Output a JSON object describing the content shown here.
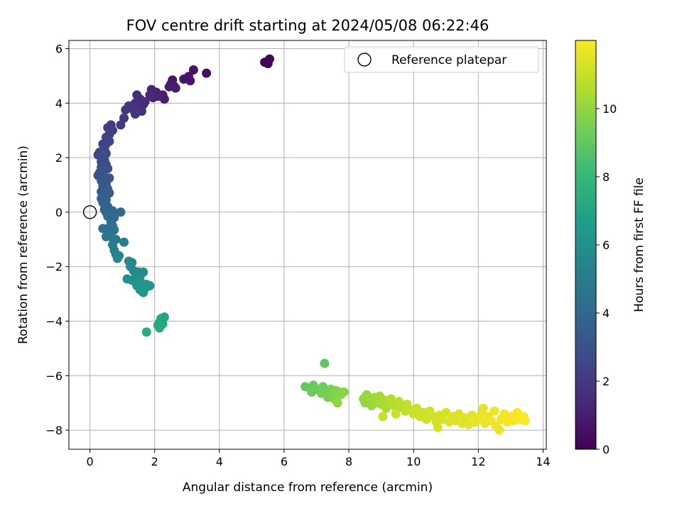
{
  "chart_data": {
    "type": "scatter",
    "title": "FOV centre drift starting at 2024/05/08 06:22:46",
    "xlabel": "Angular distance from reference (arcmin)",
    "ylabel": "Rotation from reference (arcmin)",
    "xlim": [
      -0.65,
      14.1
    ],
    "ylim": [
      -8.7,
      6.3
    ],
    "xticks": [
      0,
      2,
      4,
      6,
      8,
      10,
      12,
      14
    ],
    "yticks": [
      -8,
      -6,
      -4,
      -2,
      0,
      2,
      4,
      6
    ],
    "grid": true,
    "legend": {
      "placement": "top-right",
      "entries": [
        "Reference platepar"
      ]
    },
    "reference_point": {
      "name": "Reference platepar",
      "x": 0,
      "y": 0
    },
    "colorbar": {
      "label": "Hours from first FF file",
      "range": [
        0,
        12
      ],
      "ticks": [
        0,
        2,
        4,
        6,
        8,
        10
      ],
      "colormap": "viridis",
      "colors": [
        "#440154",
        "#482878",
        "#3e4a89",
        "#31688e",
        "#26828e",
        "#1f9e89",
        "#35b779",
        "#6ece58",
        "#b5de2b",
        "#fde725"
      ]
    },
    "series": [
      {
        "points": [
          [
            5.4,
            5.5,
            0.0
          ],
          [
            5.5,
            5.45,
            0.1
          ],
          [
            5.55,
            5.62,
            0.2
          ],
          [
            3.6,
            5.1,
            0.5
          ],
          [
            3.2,
            5.22,
            0.6
          ],
          [
            3.05,
            4.98,
            0.65
          ],
          [
            2.9,
            4.88,
            0.7
          ],
          [
            3.1,
            4.82,
            0.75
          ],
          [
            2.55,
            4.85,
            0.8
          ],
          [
            2.6,
            4.62,
            0.85
          ],
          [
            2.5,
            4.7,
            0.9
          ],
          [
            2.65,
            4.55,
            0.95
          ],
          [
            2.45,
            4.6,
            1.0
          ],
          [
            2.25,
            4.3,
            1.05
          ],
          [
            2.3,
            4.15,
            1.1
          ],
          [
            2.1,
            4.25,
            1.15
          ],
          [
            2.05,
            4.4,
            1.2
          ],
          [
            1.9,
            4.5,
            1.25
          ],
          [
            1.95,
            4.2,
            1.3
          ],
          [
            1.85,
            4.3,
            1.35
          ],
          [
            1.7,
            4.05,
            1.4
          ],
          [
            1.65,
            3.95,
            1.45
          ],
          [
            1.55,
            4.15,
            1.5
          ],
          [
            1.45,
            4.3,
            1.55
          ],
          [
            1.4,
            4.0,
            1.6
          ],
          [
            1.5,
            3.8,
            1.65
          ],
          [
            1.6,
            3.7,
            1.7
          ],
          [
            1.4,
            3.6,
            1.75
          ],
          [
            1.35,
            3.75,
            1.8
          ],
          [
            1.2,
            3.9,
            1.85
          ],
          [
            1.1,
            3.75,
            1.9
          ],
          [
            1.05,
            3.45,
            1.95
          ],
          [
            0.95,
            3.2,
            2.0
          ],
          [
            0.65,
            3.2,
            2.1
          ],
          [
            0.55,
            3.1,
            2.15
          ],
          [
            0.7,
            3.0,
            2.2
          ],
          [
            0.6,
            2.85,
            2.25
          ],
          [
            0.5,
            2.75,
            2.3
          ],
          [
            0.6,
            2.6,
            2.35
          ],
          [
            0.5,
            2.5,
            2.4
          ],
          [
            0.4,
            2.5,
            2.45
          ],
          [
            0.45,
            2.3,
            2.5
          ],
          [
            0.3,
            2.2,
            2.55
          ],
          [
            0.25,
            2.1,
            2.6
          ],
          [
            0.4,
            2.05,
            2.65
          ],
          [
            0.5,
            2.15,
            2.7
          ],
          [
            0.45,
            1.9,
            2.75
          ],
          [
            0.35,
            1.85,
            2.8
          ],
          [
            0.5,
            1.75,
            2.85
          ],
          [
            0.35,
            1.65,
            2.9
          ],
          [
            0.55,
            1.6,
            2.95
          ],
          [
            0.4,
            1.5,
            3.0
          ],
          [
            0.3,
            1.45,
            3.05
          ],
          [
            0.25,
            1.35,
            3.1
          ],
          [
            0.45,
            1.3,
            3.15
          ],
          [
            0.6,
            1.25,
            3.2
          ],
          [
            0.35,
            1.15,
            3.25
          ],
          [
            0.5,
            1.05,
            3.3
          ],
          [
            0.4,
            0.95,
            3.35
          ],
          [
            0.55,
            0.85,
            3.4
          ],
          [
            0.35,
            0.75,
            3.45
          ],
          [
            0.6,
            0.7,
            3.5
          ],
          [
            0.45,
            0.6,
            3.55
          ],
          [
            0.35,
            0.5,
            3.6
          ],
          [
            0.5,
            0.45,
            3.65
          ],
          [
            0.4,
            0.35,
            3.7
          ],
          [
            0.55,
            0.2,
            3.75
          ],
          [
            0.45,
            0.1,
            3.8
          ],
          [
            0.5,
            0.0,
            3.85
          ],
          [
            0.6,
            -0.05,
            3.9
          ],
          [
            0.7,
            0.05,
            3.95
          ],
          [
            0.95,
            0.0,
            4.0
          ],
          [
            0.55,
            -0.15,
            4.1
          ],
          [
            0.75,
            -0.2,
            4.15
          ],
          [
            0.65,
            -0.35,
            4.2
          ],
          [
            0.7,
            -0.5,
            4.3
          ],
          [
            0.55,
            -0.6,
            4.4
          ],
          [
            0.4,
            -0.6,
            4.45
          ],
          [
            0.75,
            -0.65,
            4.5
          ],
          [
            0.6,
            -0.8,
            4.6
          ],
          [
            0.5,
            -0.9,
            4.7
          ],
          [
            0.7,
            -0.95,
            4.8
          ],
          [
            0.8,
            -1.0,
            4.9
          ],
          [
            1.05,
            -1.1,
            5.0
          ],
          [
            0.7,
            -1.2,
            5.1
          ],
          [
            0.75,
            -1.4,
            5.2
          ],
          [
            0.8,
            -1.55,
            5.3
          ],
          [
            0.9,
            -1.6,
            5.4
          ],
          [
            0.85,
            -1.7,
            5.5
          ],
          [
            1.2,
            -1.8,
            5.6
          ],
          [
            1.3,
            -1.85,
            5.65
          ],
          [
            1.25,
            -2.0,
            5.7
          ],
          [
            1.35,
            -2.15,
            5.75
          ],
          [
            1.5,
            -2.2,
            5.8
          ],
          [
            1.55,
            -2.35,
            5.85
          ],
          [
            1.65,
            -2.2,
            5.9
          ],
          [
            1.4,
            -2.4,
            5.95
          ],
          [
            1.15,
            -2.45,
            6.0
          ],
          [
            1.3,
            -2.5,
            6.05
          ],
          [
            1.5,
            -2.55,
            6.1
          ],
          [
            1.45,
            -2.7,
            6.15
          ],
          [
            1.6,
            -2.6,
            6.2
          ],
          [
            1.75,
            -2.65,
            6.25
          ],
          [
            1.85,
            -2.7,
            6.3
          ],
          [
            1.55,
            -2.85,
            6.35
          ],
          [
            1.65,
            -2.95,
            6.4
          ],
          [
            1.7,
            -2.8,
            6.45
          ],
          [
            2.3,
            -3.85,
            7.0
          ],
          [
            2.2,
            -3.9,
            7.05
          ],
          [
            2.15,
            -4.05,
            7.1
          ],
          [
            2.25,
            -4.1,
            7.15
          ],
          [
            2.1,
            -4.15,
            7.2
          ],
          [
            2.15,
            -4.25,
            7.25
          ],
          [
            1.75,
            -4.4,
            7.3
          ],
          [
            7.25,
            -5.55,
            9.0
          ],
          [
            6.65,
            -6.4,
            9.05
          ],
          [
            6.8,
            -6.45,
            9.1
          ],
          [
            6.9,
            -6.35,
            9.15
          ],
          [
            6.85,
            -6.6,
            9.2
          ],
          [
            7.0,
            -6.5,
            9.25
          ],
          [
            7.1,
            -6.55,
            9.3
          ],
          [
            7.2,
            -6.4,
            9.35
          ],
          [
            7.15,
            -6.65,
            9.4
          ],
          [
            7.3,
            -6.6,
            9.45
          ],
          [
            7.35,
            -6.8,
            9.5
          ],
          [
            7.45,
            -6.5,
            9.55
          ],
          [
            7.5,
            -6.65,
            9.6
          ],
          [
            7.55,
            -6.85,
            9.65
          ],
          [
            7.6,
            -6.55,
            9.7
          ],
          [
            7.7,
            -6.6,
            9.75
          ],
          [
            7.75,
            -6.7,
            9.8
          ],
          [
            7.85,
            -6.6,
            9.85
          ],
          [
            7.65,
            -7.0,
            9.9
          ],
          [
            8.45,
            -6.85,
            10.0
          ],
          [
            8.55,
            -6.7,
            10.05
          ],
          [
            8.5,
            -7.0,
            10.1
          ],
          [
            8.65,
            -6.9,
            10.15
          ],
          [
            8.7,
            -7.1,
            10.2
          ],
          [
            8.8,
            -6.8,
            10.25
          ],
          [
            8.85,
            -7.0,
            10.3
          ],
          [
            8.95,
            -6.75,
            10.35
          ],
          [
            9.0,
            -7.05,
            10.4
          ],
          [
            9.1,
            -6.9,
            10.45
          ],
          [
            9.15,
            -7.2,
            10.5
          ],
          [
            9.25,
            -7.0,
            10.55
          ],
          [
            9.3,
            -6.85,
            10.6
          ],
          [
            9.4,
            -7.1,
            10.65
          ],
          [
            9.5,
            -7.2,
            10.7
          ],
          [
            9.55,
            -6.95,
            10.75
          ],
          [
            9.65,
            -7.15,
            10.8
          ],
          [
            9.75,
            -7.3,
            10.85
          ],
          [
            9.8,
            -7.05,
            10.9
          ],
          [
            9.9,
            -7.25,
            10.95
          ],
          [
            9.05,
            -7.5,
            11.0
          ],
          [
            9.45,
            -7.4,
            11.0
          ],
          [
            10.0,
            -7.4,
            11.05
          ],
          [
            10.1,
            -7.2,
            11.05
          ],
          [
            10.2,
            -7.5,
            11.1
          ],
          [
            10.3,
            -7.35,
            11.1
          ],
          [
            10.4,
            -7.6,
            11.15
          ],
          [
            10.5,
            -7.3,
            11.15
          ],
          [
            10.6,
            -7.5,
            11.2
          ],
          [
            10.7,
            -7.7,
            11.2
          ],
          [
            10.75,
            -7.9,
            11.25
          ],
          [
            10.8,
            -7.45,
            11.25
          ],
          [
            10.9,
            -7.6,
            11.3
          ],
          [
            11.0,
            -7.35,
            11.3
          ],
          [
            11.1,
            -7.7,
            11.35
          ],
          [
            11.2,
            -7.5,
            11.35
          ],
          [
            11.3,
            -7.65,
            11.4
          ],
          [
            11.4,
            -7.4,
            11.4
          ],
          [
            11.5,
            -7.75,
            11.45
          ],
          [
            11.6,
            -7.55,
            11.45
          ],
          [
            11.7,
            -7.8,
            11.5
          ],
          [
            11.8,
            -7.45,
            11.5
          ],
          [
            11.9,
            -7.7,
            11.55
          ],
          [
            12.0,
            -7.55,
            11.55
          ],
          [
            12.1,
            -7.4,
            11.6
          ],
          [
            12.15,
            -7.2,
            11.6
          ],
          [
            12.2,
            -7.75,
            11.65
          ],
          [
            12.3,
            -7.5,
            11.65
          ],
          [
            12.4,
            -7.65,
            11.7
          ],
          [
            12.5,
            -7.3,
            11.7
          ],
          [
            12.55,
            -7.85,
            11.75
          ],
          [
            12.65,
            -8.0,
            11.75
          ],
          [
            12.7,
            -7.6,
            11.8
          ],
          [
            12.8,
            -7.4,
            11.8
          ],
          [
            12.9,
            -7.7,
            11.85
          ],
          [
            13.0,
            -7.5,
            11.85
          ],
          [
            13.1,
            -7.65,
            11.9
          ],
          [
            13.2,
            -7.35,
            11.9
          ],
          [
            13.3,
            -7.6,
            11.95
          ],
          [
            13.4,
            -7.5,
            11.95
          ],
          [
            13.45,
            -7.65,
            12.0
          ]
        ]
      }
    ]
  }
}
